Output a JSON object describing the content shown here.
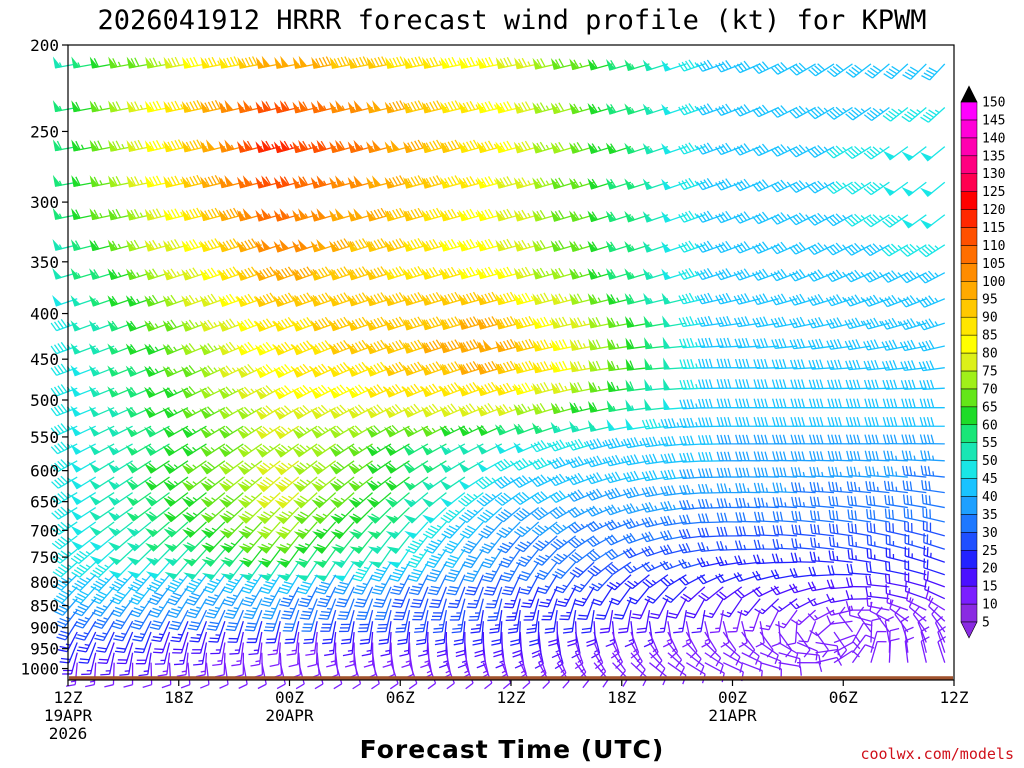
{
  "chart_data": {
    "type": "wind-barb-time-height",
    "title": "2026041912 HRRR forecast wind profile (kt) for KPWM",
    "xlabel": "Forecast Time (UTC)",
    "ylabel": "",
    "credit": "coolwx.com/models",
    "y_axis": {
      "ticks": [
        200,
        250,
        300,
        350,
        400,
        450,
        500,
        550,
        600,
        650,
        700,
        750,
        800,
        850,
        900,
        950,
        1000
      ],
      "range": [
        1030,
        200
      ],
      "scale": "log"
    },
    "x_axis": {
      "ticks": [
        {
          "hour": 0,
          "label": "12Z",
          "date": "19APR",
          "year": "2026"
        },
        {
          "hour": 6,
          "label": "18Z"
        },
        {
          "hour": 12,
          "label": "00Z",
          "date": "20APR"
        },
        {
          "hour": 18,
          "label": "06Z"
        },
        {
          "hour": 24,
          "label": "12Z"
        },
        {
          "hour": 30,
          "label": "18Z"
        },
        {
          "hour": 36,
          "label": "00Z",
          "date": "21APR"
        },
        {
          "hour": 42,
          "label": "06Z"
        },
        {
          "hour": 48,
          "label": "12Z"
        }
      ],
      "range": [
        0,
        48
      ]
    },
    "colorbar": {
      "levels": [
        5,
        10,
        15,
        20,
        25,
        30,
        35,
        40,
        45,
        50,
        55,
        60,
        65,
        70,
        75,
        80,
        85,
        90,
        95,
        100,
        105,
        110,
        115,
        120,
        125,
        130,
        135,
        140,
        145,
        150
      ],
      "colors": [
        "#8a2be2",
        "#7b1fff",
        "#4b10ff",
        "#2222ff",
        "#1f4fff",
        "#1e78ff",
        "#1ea0ff",
        "#19c3ff",
        "#19e6e6",
        "#19e6b4",
        "#19e678",
        "#1edc28",
        "#64e619",
        "#a0f019",
        "#dcf019",
        "#ffff00",
        "#ffe600",
        "#ffc800",
        "#ffaa00",
        "#ff8c00",
        "#ff6e00",
        "#ff5000",
        "#ff2800",
        "#ff0000",
        "#ff0050",
        "#ff0080",
        "#ff00b0",
        "#ff00d8",
        "#ff00ff",
        "#d000ff"
      ]
    },
    "terrain_pressure_hpa": 1020,
    "wind_grid": {
      "hours": [
        0,
        12,
        24,
        36,
        48
      ],
      "levels": [
        200,
        250,
        300,
        350,
        400,
        450,
        500,
        550,
        600,
        650,
        700,
        750,
        800,
        850,
        900,
        950,
        1000
      ],
      "speed_kt": [
        [
          50,
          95,
          80,
          40,
          40
        ],
        [
          55,
          120,
          85,
          40,
          50
        ],
        [
          55,
          110,
          80,
          40,
          50
        ],
        [
          50,
          100,
          80,
          40,
          45
        ],
        [
          45,
          90,
          95,
          40,
          45
        ],
        [
          45,
          85,
          100,
          40,
          40
        ],
        [
          45,
          80,
          85,
          40,
          40
        ],
        [
          45,
          75,
          50,
          40,
          40
        ],
        [
          45,
          80,
          45,
          40,
          35
        ],
        [
          45,
          75,
          40,
          35,
          30
        ],
        [
          45,
          70,
          35,
          30,
          30
        ],
        [
          45,
          60,
          35,
          25,
          25
        ],
        [
          45,
          35,
          25,
          20,
          20
        ],
        [
          35,
          35,
          25,
          15,
          15
        ],
        [
          25,
          15,
          20,
          10,
          10
        ],
        [
          20,
          10,
          15,
          10,
          10
        ],
        [
          10,
          10,
          10,
          10,
          10
        ]
      ],
      "direction_deg": [
        [
          260,
          260,
          260,
          250,
          220
        ],
        [
          260,
          255,
          255,
          250,
          230
        ],
        [
          260,
          255,
          255,
          250,
          230
        ],
        [
          255,
          250,
          255,
          250,
          240
        ],
        [
          250,
          250,
          255,
          260,
          250
        ],
        [
          250,
          245,
          255,
          270,
          260
        ],
        [
          250,
          240,
          250,
          270,
          270
        ],
        [
          245,
          235,
          245,
          270,
          270
        ],
        [
          240,
          230,
          240,
          270,
          275
        ],
        [
          240,
          225,
          230,
          270,
          280
        ],
        [
          235,
          220,
          220,
          270,
          285
        ],
        [
          230,
          215,
          210,
          265,
          290
        ],
        [
          225,
          210,
          200,
          240,
          290
        ],
        [
          220,
          200,
          190,
          200,
          300
        ],
        [
          210,
          190,
          180,
          150,
          320
        ],
        [
          200,
          180,
          170,
          120,
          340
        ],
        [
          180,
          160,
          150,
          110,
          340
        ]
      ]
    }
  }
}
